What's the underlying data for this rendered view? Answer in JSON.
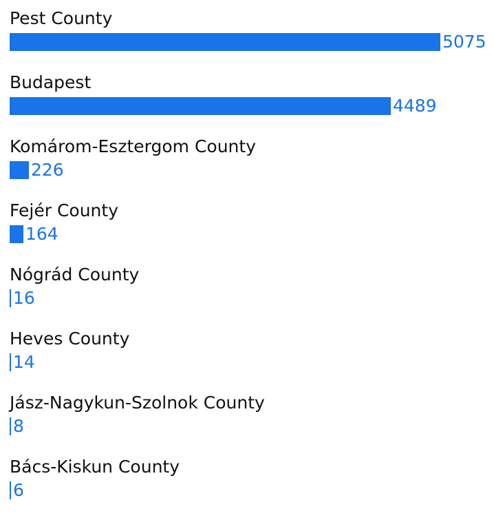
{
  "chart_data": {
    "type": "bar",
    "orientation": "horizontal",
    "categories": [
      "Pest County",
      "Budapest",
      "Komárom-Esztergom County",
      "Fejér County",
      "Nógrád County",
      "Heves County",
      "Jász-Nagykun-Szolnok County",
      "Bács-Kiskun County"
    ],
    "values": [
      5075,
      4489,
      226,
      164,
      16,
      14,
      8,
      6
    ],
    "value_labels": [
      "5075",
      "4489",
      "226",
      "164",
      "16",
      "14",
      "8",
      "6"
    ],
    "xlim": [
      0,
      5075
    ],
    "grid": false,
    "legend": "none",
    "bar_color": "#1a73e8",
    "label_color": "#111111",
    "value_color": "#1a73e8"
  }
}
